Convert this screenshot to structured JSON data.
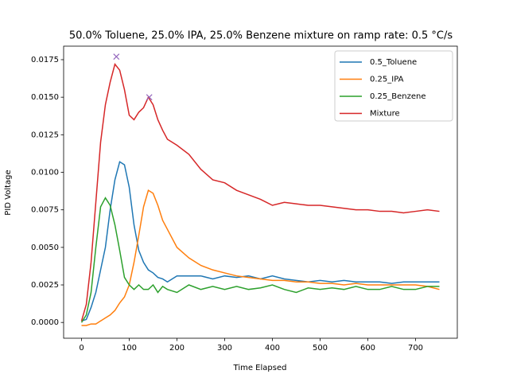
{
  "chart_data": {
    "type": "line",
    "title": "50.0% Toluene, 25.0% IPA, 25.0% Benzene mixture on ramp rate: 0.5 °C/s",
    "x_label": "Time Elapsed",
    "y_label": "PID Voltage",
    "x": [
      0,
      10,
      20,
      30,
      40,
      50,
      60,
      70,
      80,
      90,
      100,
      110,
      120,
      130,
      140,
      150,
      160,
      170,
      180,
      200,
      225,
      250,
      275,
      300,
      325,
      350,
      375,
      400,
      425,
      450,
      475,
      500,
      525,
      550,
      575,
      600,
      625,
      650,
      675,
      700,
      725,
      750
    ],
    "series": [
      {
        "name": "0.5_Toluene",
        "color": "#1f77b4",
        "values": [
          0.0001,
          0.0002,
          0.001,
          0.002,
          0.0035,
          0.005,
          0.0075,
          0.0095,
          0.0107,
          0.0105,
          0.009,
          0.0065,
          0.0048,
          0.004,
          0.0035,
          0.0033,
          0.003,
          0.0029,
          0.0027,
          0.0031,
          0.0031,
          0.0031,
          0.0029,
          0.0031,
          0.003,
          0.0031,
          0.0029,
          0.0031,
          0.0029,
          0.0028,
          0.0027,
          0.0028,
          0.0027,
          0.0028,
          0.0027,
          0.0027,
          0.0027,
          0.0026,
          0.0027,
          0.0027,
          0.0027,
          0.0027
        ]
      },
      {
        "name": "0.25_IPA",
        "color": "#ff7f0e",
        "values": [
          -0.0002,
          -0.0002,
          -0.0001,
          -0.0001,
          0.0001,
          0.0003,
          0.0005,
          0.0008,
          0.0013,
          0.0017,
          0.0025,
          0.004,
          0.0058,
          0.0077,
          0.0088,
          0.0086,
          0.0078,
          0.0068,
          0.0062,
          0.005,
          0.0043,
          0.0038,
          0.0035,
          0.0033,
          0.0031,
          0.003,
          0.0029,
          0.0028,
          0.0028,
          0.0027,
          0.0027,
          0.0026,
          0.0026,
          0.0025,
          0.0026,
          0.0025,
          0.0025,
          0.0025,
          0.0025,
          0.0025,
          0.0024,
          0.0022
        ]
      },
      {
        "name": "0.25_Benzene",
        "color": "#2ca02c",
        "values": [
          0,
          0.0005,
          0.002,
          0.005,
          0.0077,
          0.0083,
          0.0078,
          0.0065,
          0.0048,
          0.003,
          0.0025,
          0.0022,
          0.0025,
          0.0022,
          0.0022,
          0.0025,
          0.002,
          0.0024,
          0.0022,
          0.002,
          0.0025,
          0.0022,
          0.0024,
          0.0022,
          0.0024,
          0.0022,
          0.0023,
          0.0025,
          0.0022,
          0.002,
          0.0023,
          0.0022,
          0.0023,
          0.0022,
          0.0024,
          0.0022,
          0.0022,
          0.0024,
          0.0022,
          0.0022,
          0.0024,
          0.0024
        ]
      },
      {
        "name": "Mixture",
        "color": "#d62728",
        "values": [
          0.0001,
          0.0012,
          0.004,
          0.008,
          0.012,
          0.0145,
          0.016,
          0.0172,
          0.0168,
          0.0155,
          0.0138,
          0.0135,
          0.014,
          0.0143,
          0.015,
          0.0145,
          0.0135,
          0.0128,
          0.0122,
          0.0118,
          0.0112,
          0.0102,
          0.0095,
          0.0093,
          0.0088,
          0.0085,
          0.0082,
          0.0078,
          0.008,
          0.0079,
          0.0078,
          0.0078,
          0.0077,
          0.0076,
          0.0075,
          0.0075,
          0.0074,
          0.0074,
          0.0073,
          0.0074,
          0.0075,
          0.0074
        ]
      }
    ],
    "peak_markers": {
      "color": "#9467bd",
      "x": [
        73,
        142
      ],
      "values": [
        0.0177,
        0.015
      ]
    },
    "xlim": [
      -37.5,
      787.5
    ],
    "xticks": [
      0,
      100,
      200,
      300,
      400,
      500,
      600,
      700
    ],
    "ylim": [
      -0.00105,
      0.0184
    ],
    "yticks": [
      {
        "value": 0,
        "label": "0.0000"
      },
      {
        "value": 0.0025,
        "label": "0.0025"
      },
      {
        "value": 0.005,
        "label": "0.0050"
      },
      {
        "value": 0.0075,
        "label": "0.0075"
      },
      {
        "value": 0.01,
        "label": "0.0100"
      },
      {
        "value": 0.0125,
        "label": "0.0125"
      },
      {
        "value": 0.015,
        "label": "0.0150"
      },
      {
        "value": 0.0175,
        "label": "0.0175"
      }
    ],
    "legend": "upper right"
  }
}
